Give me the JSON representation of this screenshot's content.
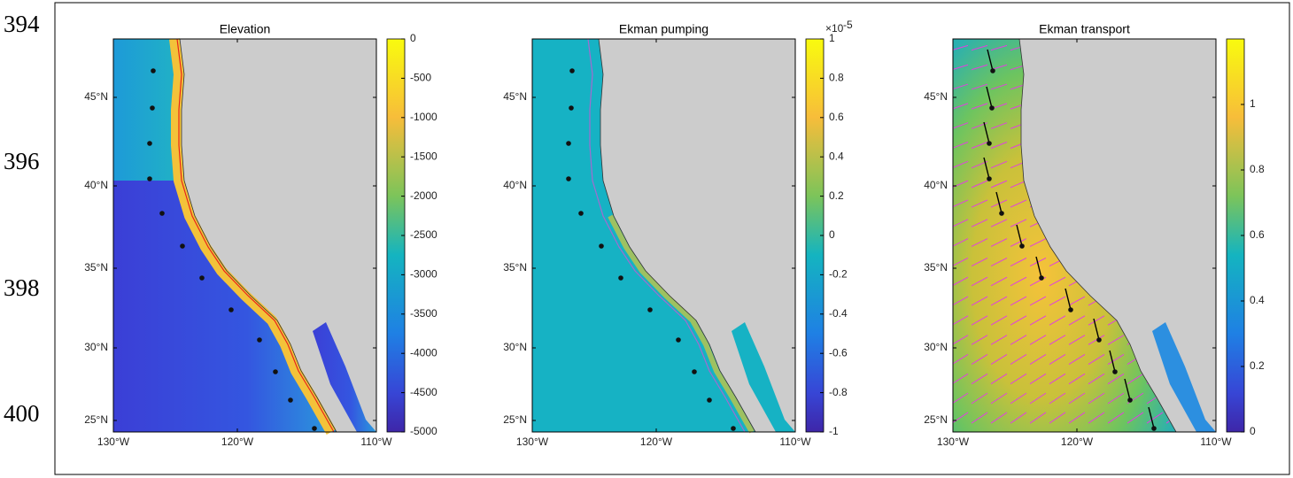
{
  "line_numbers": [
    "394",
    "396",
    "398",
    "400"
  ],
  "figure": {
    "lat_ticks": [
      "45°N",
      "40°N",
      "35°N",
      "30°N",
      "25°N"
    ],
    "lon_ticks": [
      "130°W",
      "120°W",
      "110°W"
    ],
    "panels": [
      {
        "title": "Elevation",
        "colorbar_ticks": [
          "0",
          "-500",
          "-1000",
          "-1500",
          "-2000",
          "-2500",
          "-3000",
          "-3500",
          "-4000",
          "-4500",
          "-5000"
        ]
      },
      {
        "title": "Ekman pumping",
        "colorbar_exponent": {
          "base": "×10",
          "power": "-5"
        },
        "colorbar_ticks": [
          "1",
          "0.8",
          "0.6",
          "0.4",
          "0.2",
          "0",
          "-0.2",
          "-0.4",
          "-0.6",
          "-0.8",
          "-1"
        ]
      },
      {
        "title": "Ekman transport",
        "colorbar_ticks": [
          "1",
          "0.8",
          "0.6",
          "0.4",
          "0.2",
          "0"
        ]
      }
    ]
  }
}
